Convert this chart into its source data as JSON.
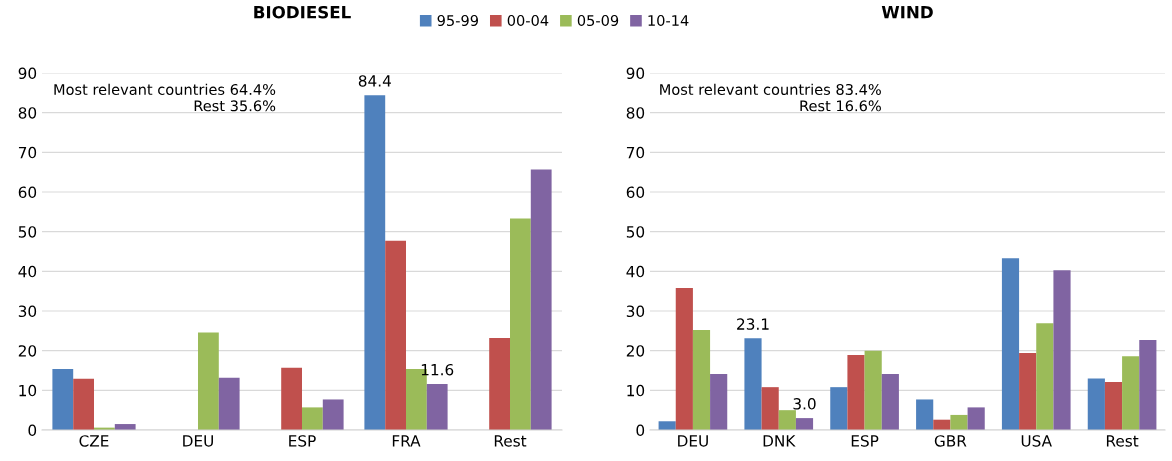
{
  "chart_data": [
    {
      "type": "bar",
      "title": "BIODIESEL",
      "categories": [
        "CZE",
        "DEU",
        "ESP",
        "FRA",
        "Rest"
      ],
      "series": [
        {
          "name": "95-99",
          "color": "#4f81bd",
          "values": [
            15.4,
            null,
            null,
            84.4,
            null
          ],
          "value_labels": [
            null,
            null,
            null,
            "84.4",
            null
          ]
        },
        {
          "name": "00-04",
          "color": "#c0504d",
          "values": [
            12.9,
            null,
            15.7,
            47.7,
            23.2
          ]
        },
        {
          "name": "05-09",
          "color": "#9bbb59",
          "values": [
            0.6,
            24.6,
            5.7,
            15.4,
            53.3
          ]
        },
        {
          "name": "10-14",
          "color": "#8064a2",
          "values": [
            1.5,
            13.2,
            7.7,
            11.6,
            65.7
          ],
          "value_labels": [
            null,
            null,
            null,
            "11.6",
            null
          ]
        }
      ],
      "ylim": [
        0,
        90
      ],
      "yticks": [
        0,
        10,
        20,
        30,
        40,
        50,
        60,
        70,
        80,
        90
      ],
      "grid": "y",
      "legend": "top right",
      "annotations": [
        "Most relevant countries 64.4%\nRest 35.6%"
      ]
    },
    {
      "type": "bar",
      "title": "WIND",
      "categories": [
        "DEU",
        "DNK",
        "ESP",
        "GBR",
        "USA",
        "Rest"
      ],
      "series": [
        {
          "color": "#4f81bd",
          "values": [
            2.2,
            23.1,
            10.8,
            7.7,
            43.3,
            13.0
          ],
          "value_labels": [
            null,
            "23.1",
            null,
            null,
            null,
            null
          ]
        },
        {
          "color": "#c0504d",
          "values": [
            35.8,
            10.8,
            18.9,
            2.6,
            19.4,
            12.1
          ]
        },
        {
          "color": "#9bbb59",
          "values": [
            25.2,
            5.0,
            20.0,
            3.8,
            26.9,
            18.6
          ]
        },
        {
          "color": "#8064a2",
          "values": [
            14.1,
            3.0,
            14.1,
            5.7,
            40.3,
            22.7
          ],
          "value_labels": [
            null,
            "3.0",
            null,
            null,
            null,
            null
          ]
        }
      ],
      "ylim": [
        0,
        90
      ],
      "yticks": [
        0,
        10,
        20,
        30,
        40,
        50,
        60,
        70,
        80,
        90
      ],
      "grid": "y",
      "annotations": [
        "Most relevant countries 83.4%\nRest 16.6%"
      ]
    }
  ]
}
